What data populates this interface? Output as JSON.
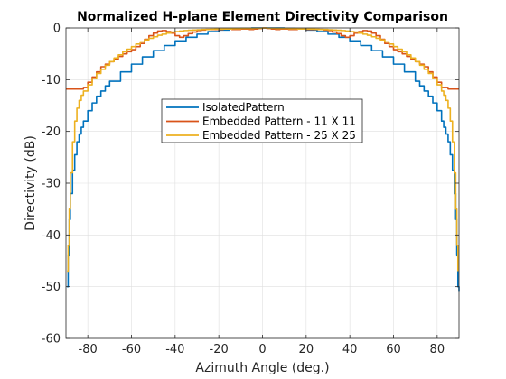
{
  "chart_data": {
    "type": "line",
    "title": "Normalized H-plane Element Directivity Comparison",
    "xlabel": "Azimuth Angle (deg.)",
    "ylabel": "Directivity (dB)",
    "xlim": [
      -90,
      90
    ],
    "ylim": [
      -60,
      0
    ],
    "xticks": [
      -80,
      -60,
      -40,
      -20,
      0,
      20,
      40,
      60,
      80
    ],
    "yticks": [
      0,
      -10,
      -20,
      -30,
      -40,
      -50,
      -60
    ],
    "xtick_labels": [
      "-80",
      "-60",
      "-40",
      "-20",
      "0",
      "20",
      "40",
      "60",
      "80"
    ],
    "ytick_labels": [
      "0",
      "-10",
      "-20",
      "-30",
      "-40",
      "-50",
      "-60"
    ],
    "grid": true,
    "legend_position": "center",
    "series": [
      {
        "name": "IsolatedPattern",
        "color": "#0072BD",
        "x": [
          -89.5,
          -89,
          -88.5,
          -88,
          -87,
          -86,
          -85,
          -84,
          -83,
          -82,
          -80,
          -78,
          -76,
          -74,
          -72,
          -70,
          -65,
          -60,
          -55,
          -50,
          -45,
          -40,
          -35,
          -30,
          -25,
          -20,
          -15,
          -10,
          -5,
          0,
          5,
          10,
          15,
          20,
          25,
          30,
          35,
          40,
          45,
          50,
          55,
          60,
          65,
          70,
          72,
          74,
          76,
          78,
          80,
          82,
          83,
          84,
          85,
          86,
          87,
          88,
          88.5,
          89,
          89.5,
          90
        ],
        "y": [
          -50,
          -44,
          -37,
          -32,
          -27.5,
          -24.5,
          -22,
          -20.5,
          -19.2,
          -18,
          -16,
          -14.5,
          -13.2,
          -12.2,
          -11.2,
          -10.3,
          -8.5,
          -7,
          -5.6,
          -4.4,
          -3.4,
          -2.5,
          -1.8,
          -1.2,
          -0.7,
          -0.4,
          -0.2,
          -0.1,
          0,
          0,
          0,
          -0.1,
          -0.2,
          -0.4,
          -0.7,
          -1.2,
          -1.8,
          -2.5,
          -3.4,
          -4.4,
          -5.6,
          -7,
          -8.5,
          -10.3,
          -11.2,
          -12.2,
          -13.2,
          -14.5,
          -16,
          -18,
          -19.2,
          -20.5,
          -22,
          -24.5,
          -27.5,
          -32,
          -37,
          -44,
          -50,
          -51
        ]
      },
      {
        "name": "Embedded Pattern - 11 X 11",
        "color": "#D95319",
        "x": [
          -90,
          -85,
          -82,
          -80,
          -78,
          -76,
          -74,
          -72,
          -70,
          -68,
          -66,
          -64,
          -62,
          -60,
          -58,
          -56,
          -54,
          -52,
          -50,
          -48,
          -46,
          -44,
          -42,
          -40,
          -38,
          -36,
          -34,
          -32,
          -30,
          -28,
          -26,
          -24,
          -22,
          -20,
          -18,
          -16,
          -14,
          -12,
          -10,
          -8,
          -6,
          -4,
          -2,
          0,
          2,
          4,
          6,
          8,
          10,
          12,
          14,
          16,
          18,
          20,
          22,
          24,
          26,
          28,
          30,
          32,
          34,
          36,
          38,
          40,
          42,
          44,
          46,
          48,
          50,
          52,
          54,
          56,
          58,
          60,
          62,
          64,
          66,
          68,
          70,
          72,
          74,
          76,
          78,
          80,
          82,
          85,
          90
        ],
        "y": [
          -11.8,
          -11.8,
          -11.5,
          -10.5,
          -9.5,
          -8.5,
          -7.5,
          -7,
          -6.5,
          -6,
          -5.5,
          -5,
          -4.6,
          -4.2,
          -3.6,
          -3,
          -2.2,
          -1.5,
          -1,
          -0.6,
          -0.5,
          -0.7,
          -1,
          -1.5,
          -1.8,
          -1.5,
          -1.1,
          -0.8,
          -0.5,
          -0.4,
          -0.3,
          -0.3,
          -0.3,
          -0.3,
          -0.2,
          -0.2,
          -0.3,
          -0.3,
          -0.2,
          -0.2,
          -0.3,
          -0.2,
          -0.1,
          0,
          -0.1,
          -0.2,
          -0.3,
          -0.2,
          -0.2,
          -0.3,
          -0.3,
          -0.2,
          -0.2,
          -0.3,
          -0.3,
          -0.3,
          -0.3,
          -0.4,
          -0.5,
          -0.8,
          -1.1,
          -1.5,
          -1.8,
          -1.5,
          -1,
          -0.7,
          -0.5,
          -0.6,
          -1,
          -1.5,
          -2.2,
          -3,
          -3.6,
          -4.2,
          -4.6,
          -5,
          -5.5,
          -6,
          -6.5,
          -7,
          -7.5,
          -8.5,
          -9.5,
          -10.5,
          -11.5,
          -11.8,
          -11.8
        ]
      },
      {
        "name": "Embedded Pattern - 25 X 25",
        "color": "#EDB120",
        "x": [
          -89.5,
          -89,
          -88.5,
          -88,
          -87,
          -86,
          -85,
          -84,
          -83,
          -82,
          -80,
          -78,
          -76,
          -74,
          -72,
          -70,
          -68,
          -66,
          -64,
          -62,
          -60,
          -58,
          -56,
          -54,
          -52,
          -50,
          -48,
          -46,
          -44,
          -42,
          -40,
          -38,
          -36,
          -34,
          -32,
          -30,
          -28,
          -26,
          -24,
          -22,
          -20,
          -18,
          -16,
          -14,
          -12,
          -10,
          -8,
          -6,
          -4,
          -2,
          0,
          2,
          4,
          6,
          8,
          10,
          12,
          14,
          16,
          18,
          20,
          22,
          24,
          26,
          28,
          30,
          32,
          34,
          36,
          38,
          40,
          42,
          44,
          46,
          48,
          50,
          52,
          54,
          56,
          58,
          60,
          62,
          64,
          66,
          68,
          70,
          72,
          74,
          76,
          78,
          80,
          82,
          83,
          84,
          85,
          86,
          87,
          88,
          88.5,
          89,
          89.5
        ],
        "y": [
          -47,
          -42,
          -35,
          -28,
          -22,
          -18,
          -15.5,
          -14,
          -13,
          -12.2,
          -11,
          -9.8,
          -8.8,
          -8,
          -7.2,
          -6.5,
          -5.8,
          -5.2,
          -4.6,
          -4.1,
          -3.6,
          -3.1,
          -2.7,
          -2.3,
          -2,
          -1.7,
          -1.4,
          -1.2,
          -1,
          -0.8,
          -0.7,
          -0.6,
          -0.5,
          -0.45,
          -0.4,
          -0.35,
          -0.3,
          -0.3,
          -0.25,
          -0.2,
          -0.2,
          -0.2,
          -0.2,
          -0.15,
          -0.15,
          -0.1,
          -0.1,
          -0.1,
          -0.05,
          -0.05,
          0,
          -0.05,
          -0.05,
          -0.1,
          -0.1,
          -0.1,
          -0.15,
          -0.15,
          -0.2,
          -0.2,
          -0.2,
          -0.2,
          -0.25,
          -0.3,
          -0.3,
          -0.35,
          -0.4,
          -0.45,
          -0.5,
          -0.6,
          -0.7,
          -0.8,
          -1,
          -1.2,
          -1.4,
          -1.7,
          -2,
          -2.3,
          -2.7,
          -3.1,
          -3.6,
          -4.1,
          -4.6,
          -5.2,
          -5.8,
          -6.5,
          -7.2,
          -8,
          -8.8,
          -9.8,
          -11,
          -12.2,
          -13,
          -14,
          -15.5,
          -18,
          -22,
          -28,
          -35,
          -42,
          -47
        ]
      }
    ]
  }
}
